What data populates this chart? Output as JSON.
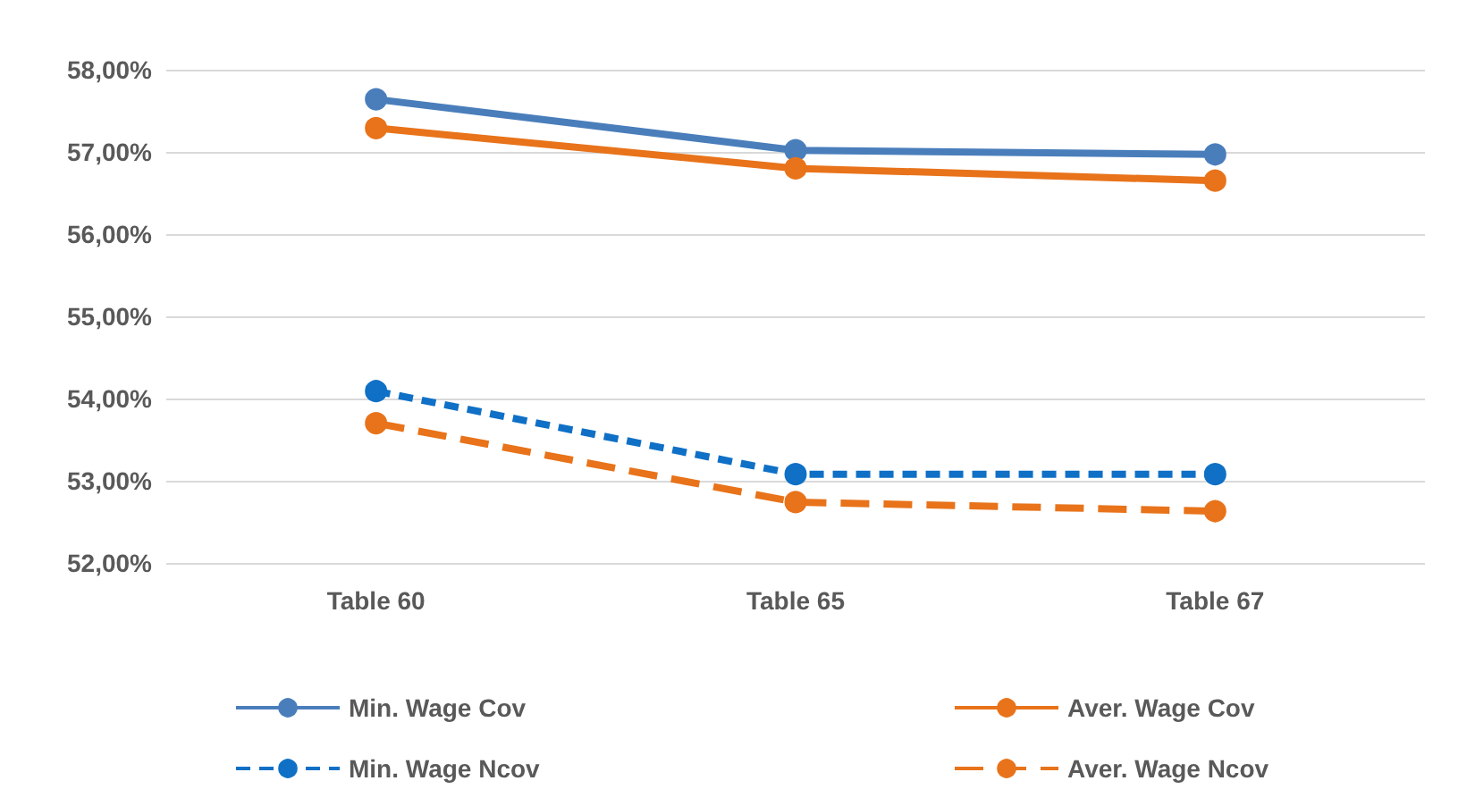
{
  "chart_data": {
    "type": "line",
    "categories": [
      "Table 60",
      "Table 65",
      "Table 67"
    ],
    "series": [
      {
        "name": "Min. Wage Cov",
        "color": "#4a7ebb",
        "values": [
          57.64,
          57.02,
          56.97
        ],
        "line_style": "solid"
      },
      {
        "name": "Aver. Wage Cov",
        "color": "#e8731a",
        "values": [
          57.29,
          56.8,
          56.65
        ],
        "line_style": "solid"
      },
      {
        "name": "Min. Wage Ncov",
        "color": "#0f70c6",
        "values": [
          54.09,
          53.08,
          53.08
        ],
        "line_style": "dashed"
      },
      {
        "name": "Aver. Wage Ncov",
        "color": "#e8731a",
        "values": [
          53.7,
          52.74,
          52.63
        ],
        "line_style": "dashed"
      }
    ],
    "ylim": [
      52,
      58
    ],
    "yticks": [
      {
        "value": 52,
        "label": "52,00%"
      },
      {
        "value": 53,
        "label": "53,00%"
      },
      {
        "value": 54,
        "label": "54,00%"
      },
      {
        "value": 55,
        "label": "55,00%"
      },
      {
        "value": 56,
        "label": "56,00%"
      },
      {
        "value": 57,
        "label": "57,00%"
      },
      {
        "value": 58,
        "label": "58,00%"
      }
    ],
    "grid": "y",
    "legend": "bottom",
    "marker": "circle"
  }
}
